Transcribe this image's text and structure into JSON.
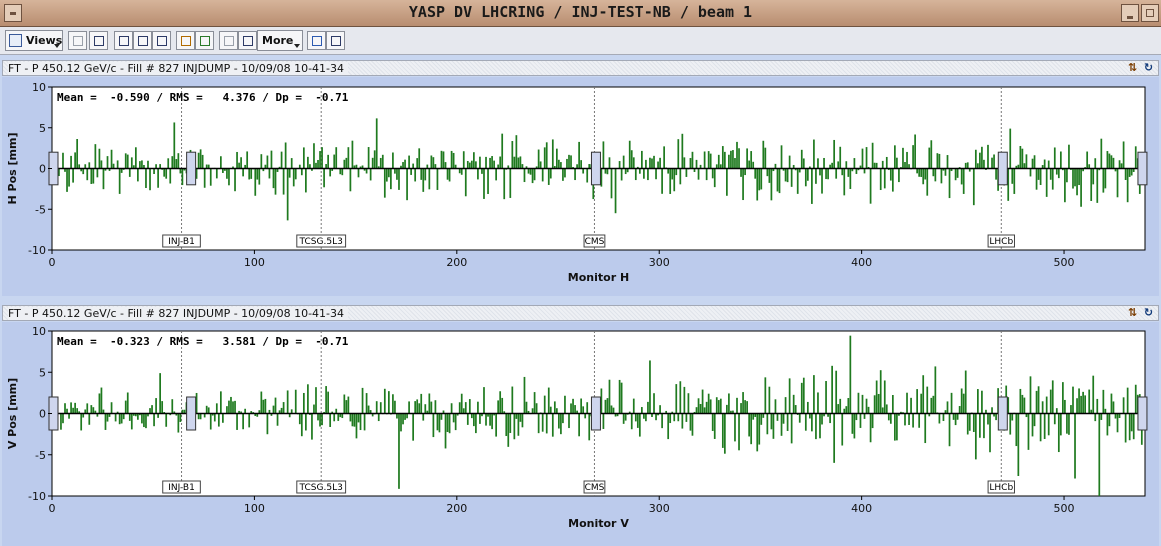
{
  "window": {
    "title": "YASP DV LHCRING / INJ-TEST-NB / beam 1"
  },
  "toolbar": {
    "views_label": "Views",
    "more_label": "More"
  },
  "icons": {
    "views": "views-icon",
    "layout1": "layout-single-icon",
    "layout2": "layout-grid-icon",
    "view_a": "view-a-icon",
    "view_b": "view-b-icon",
    "view_c": "view-c-icon",
    "tool1": "settings-icon",
    "tool2": "list-icon",
    "tool3": "table-grey-icon",
    "tool4": "table-icon",
    "export": "export-icon",
    "print": "print-icon"
  },
  "colors": {
    "bar": "#1f7a1f",
    "plot_bg": "#ffffff",
    "panel_bg": "#bccbec",
    "marker_fill": "#cfd6ee"
  },
  "panels": [
    {
      "header": "FT - P 450.12 GeV/c - Fill # 827 INJDUMP - 10/09/08 10-41-34",
      "stats": "Mean =  -0.590 / RMS =   4.376 / Dp =  -0.71",
      "xlabel": "Monitor H",
      "ylabel": "H Pos [mm]",
      "markers": [
        "INJ-B1",
        "TCSG.5L3",
        "CMS",
        "LHCb"
      ]
    },
    {
      "header": "FT - P 450.12 GeV/c - Fill # 827 INJDUMP - 10/09/08 10-41-34",
      "stats": "Mean =  -0.323 / RMS =   3.581 / Dp =  -0.71",
      "xlabel": "Monitor V",
      "ylabel": "V Pos [mm]",
      "markers": [
        "INJ-B1",
        "TCSG.5L3",
        "CMS",
        "LHCb"
      ]
    }
  ],
  "chart_data": [
    {
      "type": "bar",
      "xlabel": "Monitor H",
      "ylabel": "H Pos [mm]",
      "xlim": [
        0,
        540
      ],
      "ylim": [
        -10,
        10
      ],
      "xticks": [
        0,
        100,
        200,
        300,
        400,
        500
      ],
      "yticks": [
        -10,
        -5,
        0,
        5,
        10
      ],
      "vlines": [
        {
          "x": 64,
          "label": "INJ-B1"
        },
        {
          "x": 133,
          "label": "TCSG.5L3"
        },
        {
          "x": 268,
          "label": "CMS"
        },
        {
          "x": 469,
          "label": "LHCb"
        }
      ],
      "ip_boxes": [
        0,
        68,
        268,
        469,
        538
      ],
      "seed": 827,
      "amplitude": 4.4,
      "n": 540
    },
    {
      "type": "bar",
      "xlabel": "Monitor V",
      "ylabel": "V Pos [mm]",
      "xlim": [
        0,
        540
      ],
      "ylim": [
        -10,
        10
      ],
      "xticks": [
        0,
        100,
        200,
        300,
        400,
        500
      ],
      "yticks": [
        -10,
        -5,
        0,
        5,
        10
      ],
      "vlines": [
        {
          "x": 64,
          "label": "INJ-B1"
        },
        {
          "x": 133,
          "label": "TCSG.5L3"
        },
        {
          "x": 268,
          "label": "CMS"
        },
        {
          "x": 469,
          "label": "LHCb"
        }
      ],
      "ip_boxes": [
        0,
        68,
        268,
        469,
        538
      ],
      "seed": 4211,
      "amplitude": 3.6,
      "n": 540
    }
  ]
}
